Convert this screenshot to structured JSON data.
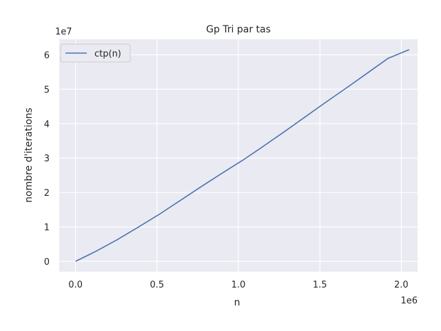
{
  "chart_data": {
    "type": "line",
    "title": "Gp Tri par tas",
    "xlabel": "n",
    "ylabel": "nombre d'iterations",
    "x_offset_label": "1e6",
    "y_offset_label": "1e7",
    "xlim": [
      -0.1,
      2.1
    ],
    "ylim": [
      -0.3,
      6.45
    ],
    "x_ticks": [
      0.0,
      0.5,
      1.0,
      1.5,
      2.0
    ],
    "x_tick_labels": [
      "0.0",
      "0.5",
      "1.0",
      "1.5",
      "2.0"
    ],
    "y_ticks": [
      0,
      1,
      2,
      3,
      4,
      5,
      6
    ],
    "y_tick_labels": [
      "0",
      "1",
      "2",
      "3",
      "4",
      "5",
      "6"
    ],
    "grid": true,
    "legend_position": "top-left",
    "series": [
      {
        "name": "ctp(n)",
        "color": "#4c72b0",
        "x": [
          0.0,
          0.128,
          0.256,
          0.384,
          0.512,
          0.64,
          0.768,
          0.896,
          1.024,
          1.152,
          1.28,
          1.408,
          1.536,
          1.664,
          1.792,
          1.92,
          2.048
        ],
        "y": [
          0.0,
          0.3,
          0.63,
          0.99,
          1.36,
          1.76,
          2.16,
          2.55,
          2.93,
          3.34,
          3.76,
          4.19,
          4.62,
          5.04,
          5.47,
          5.9,
          6.15
        ]
      }
    ]
  }
}
